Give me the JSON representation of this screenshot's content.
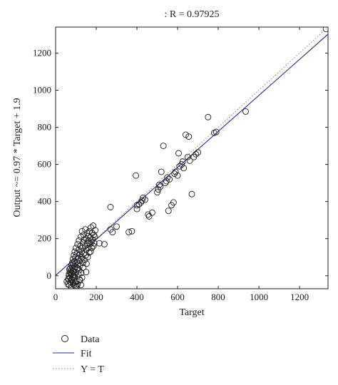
{
  "chart_data": {
    "type": "scatter",
    "title": ": R = 0.97925",
    "xlabel": "Target",
    "ylabel": "Output ~= 0.97 * Target + 1.9",
    "xlim": [
      0,
      1340
    ],
    "ylim": [
      -70,
      1340
    ],
    "xticks": [
      0,
      200,
      400,
      600,
      800,
      1000,
      1200
    ],
    "yticks": [
      0,
      200,
      400,
      600,
      800,
      1000,
      1200
    ],
    "grid": false,
    "legend_placement": "bottom-left",
    "series": [
      {
        "name": "Data",
        "marker": "circle",
        "color": "#222222",
        "points": [
          [
            55,
            -30
          ],
          [
            60,
            -45
          ],
          [
            62,
            -20
          ],
          [
            65,
            0
          ],
          [
            66,
            10
          ],
          [
            68,
            -50
          ],
          [
            70,
            -10
          ],
          [
            70,
            20
          ],
          [
            72,
            40
          ],
          [
            73,
            -35
          ],
          [
            75,
            5
          ],
          [
            76,
            30
          ],
          [
            77,
            -60
          ],
          [
            78,
            55
          ],
          [
            80,
            15
          ],
          [
            80,
            -25
          ],
          [
            82,
            70
          ],
          [
            83,
            45
          ],
          [
            84,
            -5
          ],
          [
            85,
            90
          ],
          [
            86,
            25
          ],
          [
            87,
            -40
          ],
          [
            88,
            60
          ],
          [
            90,
            110
          ],
          [
            90,
            -15
          ],
          [
            92,
            35
          ],
          [
            93,
            80
          ],
          [
            94,
            130
          ],
          [
            95,
            5
          ],
          [
            96,
            -55
          ],
          [
            97,
            50
          ],
          [
            98,
            100
          ],
          [
            100,
            150
          ],
          [
            100,
            20
          ],
          [
            102,
            -30
          ],
          [
            104,
            75
          ],
          [
            105,
            120
          ],
          [
            106,
            40
          ],
          [
            108,
            -45
          ],
          [
            108,
            170
          ],
          [
            110,
            95
          ],
          [
            110,
            60
          ],
          [
            112,
            10
          ],
          [
            114,
            140
          ],
          [
            115,
            190
          ],
          [
            116,
            30
          ],
          [
            118,
            -20
          ],
          [
            118,
            80
          ],
          [
            120,
            115
          ],
          [
            120,
            55
          ],
          [
            122,
            160
          ],
          [
            124,
            210
          ],
          [
            125,
            -50
          ],
          [
            126,
            90
          ],
          [
            128,
            130
          ],
          [
            130,
            100
          ],
          [
            130,
            240
          ],
          [
            132,
            150
          ],
          [
            134,
            70
          ],
          [
            135,
            180
          ],
          [
            136,
            45
          ],
          [
            138,
            220
          ],
          [
            140,
            120
          ],
          [
            140,
            195
          ],
          [
            142,
            85
          ],
          [
            145,
            160
          ],
          [
            146,
            250
          ],
          [
            148,
            110
          ],
          [
            150,
            200
          ],
          [
            150,
            140
          ],
          [
            152,
            65
          ],
          [
            155,
            230
          ],
          [
            156,
            175
          ],
          [
            158,
            100
          ],
          [
            160,
            215
          ],
          [
            160,
            150
          ],
          [
            162,
            190
          ],
          [
            165,
            125
          ],
          [
            166,
            240
          ],
          [
            168,
            170
          ],
          [
            170,
            205
          ],
          [
            172,
            130
          ],
          [
            174,
            260
          ],
          [
            176,
            180
          ],
          [
            178,
            150
          ],
          [
            180,
            230
          ],
          [
            182,
            195
          ],
          [
            185,
            270
          ],
          [
            186,
            160
          ],
          [
            188,
            220
          ],
          [
            190,
            175
          ],
          [
            192,
            210
          ],
          [
            195,
            245
          ],
          [
            120,
            -25
          ],
          [
            105,
            -55
          ],
          [
            100,
            -60
          ],
          [
            95,
            -35
          ],
          [
            90,
            -50
          ],
          [
            130,
            -10
          ],
          [
            150,
            20
          ],
          [
            88,
            5
          ],
          [
            92,
            -5
          ],
          [
            78,
            -20
          ],
          [
            74,
            15
          ],
          [
            68,
            35
          ],
          [
            64,
            -15
          ],
          [
            84,
            25
          ],
          [
            96,
            65
          ],
          [
            110,
            40
          ],
          [
            126,
            15
          ],
          [
            215,
            175
          ],
          [
            240,
            170
          ],
          [
            270,
            250
          ],
          [
            280,
            235
          ],
          [
            270,
            370
          ],
          [
            300,
            265
          ],
          [
            360,
            235
          ],
          [
            375,
            240
          ],
          [
            395,
            540
          ],
          [
            400,
            360
          ],
          [
            400,
            380
          ],
          [
            410,
            385
          ],
          [
            420,
            395
          ],
          [
            425,
            405
          ],
          [
            430,
            420
          ],
          [
            440,
            410
          ],
          [
            455,
            330
          ],
          [
            460,
            320
          ],
          [
            475,
            340
          ],
          [
            500,
            450
          ],
          [
            505,
            465
          ],
          [
            510,
            490
          ],
          [
            515,
            480
          ],
          [
            520,
            560
          ],
          [
            530,
            700
          ],
          [
            540,
            500
          ],
          [
            545,
            510
          ],
          [
            550,
            530
          ],
          [
            555,
            350
          ],
          [
            560,
            520
          ],
          [
            570,
            380
          ],
          [
            580,
            395
          ],
          [
            585,
            550
          ],
          [
            590,
            560
          ],
          [
            600,
            540
          ],
          [
            605,
            660
          ],
          [
            610,
            590
          ],
          [
            620,
            600
          ],
          [
            625,
            615
          ],
          [
            630,
            580
          ],
          [
            640,
            760
          ],
          [
            650,
            640
          ],
          [
            655,
            750
          ],
          [
            660,
            620
          ],
          [
            670,
            440
          ],
          [
            680,
            640
          ],
          [
            690,
            655
          ],
          [
            700,
            665
          ],
          [
            750,
            855
          ],
          [
            780,
            770
          ],
          [
            790,
            775
          ],
          [
            935,
            885
          ],
          [
            1330,
            1330
          ]
        ]
      },
      {
        "name": "Fit",
        "kind": "line",
        "color": "#2b2f8f",
        "slope": 0.97,
        "intercept": 1.9,
        "x_range": [
          -70,
          1340
        ]
      },
      {
        "name": "Y = T",
        "kind": "line",
        "style": "dotted",
        "color": "#888888",
        "slope": 1,
        "intercept": 0,
        "x_range": [
          -70,
          1340
        ]
      }
    ]
  },
  "legend": {
    "data_label": "Data",
    "fit_label": "Fit",
    "yt_label": "Y = T"
  }
}
